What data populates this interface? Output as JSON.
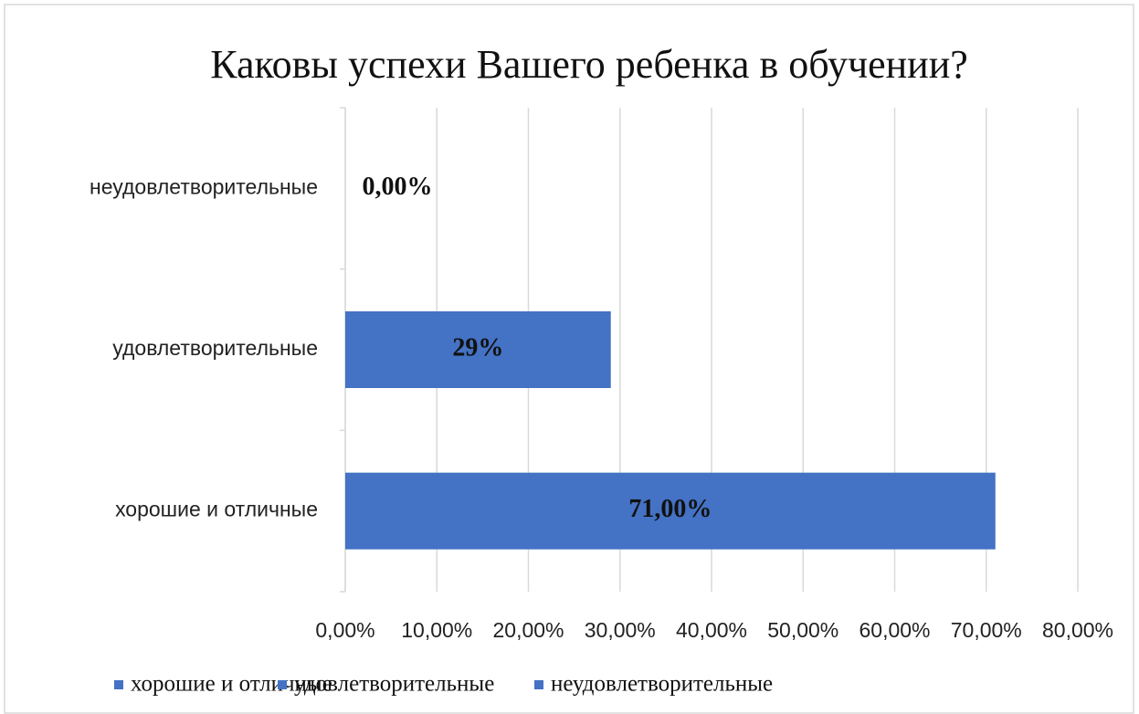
{
  "chart_data": {
    "type": "bar",
    "orientation": "horizontal",
    "title": "Каковы успехи Вашего ребенка в обучении?",
    "categories": [
      "хорошие и отличные",
      "удовлетворительные",
      "неудовлетворительные"
    ],
    "values": [
      71,
      29,
      0
    ],
    "value_labels": [
      "71,00%",
      "29%",
      "0,00%"
    ],
    "colors": [
      "#4472c4",
      "#4472c4",
      "#4472c4"
    ],
    "xlim": [
      0,
      80
    ],
    "xticks": [
      {
        "value": 0,
        "label": "0,00%"
      },
      {
        "value": 10,
        "label": "10,00%"
      },
      {
        "value": 20,
        "label": "20,00%"
      },
      {
        "value": 30,
        "label": "30,00%"
      },
      {
        "value": 40,
        "label": "40,00%"
      },
      {
        "value": 50,
        "label": "50,00%"
      },
      {
        "value": 60,
        "label": "60,00%"
      },
      {
        "value": 70,
        "label": "70,00%"
      },
      {
        "value": 80,
        "label": "80,00%"
      }
    ],
    "grid": true,
    "legend": "bottom"
  }
}
